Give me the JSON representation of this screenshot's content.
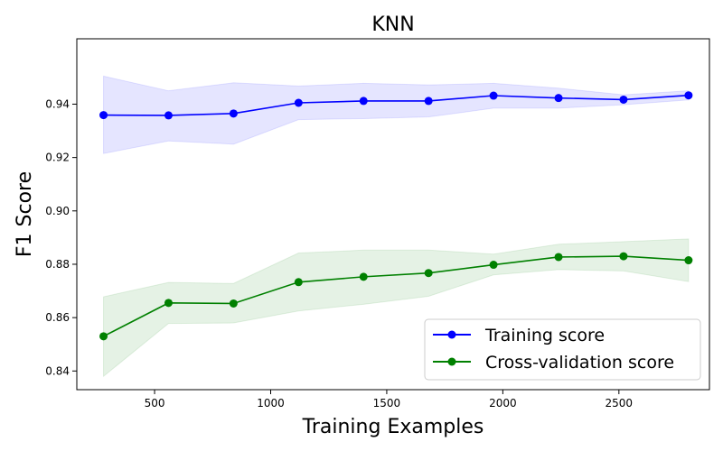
{
  "chart_data": {
    "type": "line",
    "title": "KNN",
    "xlabel": "Training Examples",
    "ylabel": "F1 Score",
    "xlim": [
      165,
      2890
    ],
    "ylim": [
      0.833,
      0.9645
    ],
    "xticks": [
      500,
      1000,
      1500,
      2000,
      2500
    ],
    "xtick_labels": [
      "500",
      "1000",
      "1500",
      "2000",
      "2500"
    ],
    "yticks": [
      0.84,
      0.86,
      0.88,
      0.9,
      0.92,
      0.94
    ],
    "ytick_labels": [
      "0.84",
      "0.86",
      "0.88",
      "0.90",
      "0.92",
      "0.94"
    ],
    "grid": false,
    "legend_position": "lower-right",
    "x": [
      280,
      560,
      840,
      1120,
      1400,
      1680,
      1960,
      2240,
      2520,
      2800
    ],
    "series": [
      {
        "name": "Training score",
        "color": "#0000ff",
        "band_color": "#0000ff",
        "values": [
          0.9359,
          0.9358,
          0.9365,
          0.9405,
          0.9412,
          0.9412,
          0.9432,
          0.9423,
          0.9417,
          0.9433
        ],
        "lower": [
          0.9215,
          0.9262,
          0.925,
          0.9342,
          0.9346,
          0.9352,
          0.9385,
          0.9385,
          0.9398,
          0.9416
        ],
        "upper": [
          0.9505,
          0.945,
          0.948,
          0.9468,
          0.9478,
          0.9472,
          0.9478,
          0.946,
          0.9435,
          0.945
        ]
      },
      {
        "name": "Cross-validation score",
        "color": "#008000",
        "band_color": "#008000",
        "values": [
          0.853,
          0.8655,
          0.8653,
          0.8733,
          0.8753,
          0.8767,
          0.8798,
          0.8827,
          0.883,
          0.8815
        ],
        "lower": [
          0.838,
          0.8578,
          0.858,
          0.8625,
          0.865,
          0.868,
          0.876,
          0.878,
          0.8775,
          0.8735
        ],
        "upper": [
          0.8678,
          0.8732,
          0.8728,
          0.8842,
          0.8853,
          0.8853,
          0.8838,
          0.8875,
          0.8885,
          0.8895
        ]
      }
    ]
  }
}
